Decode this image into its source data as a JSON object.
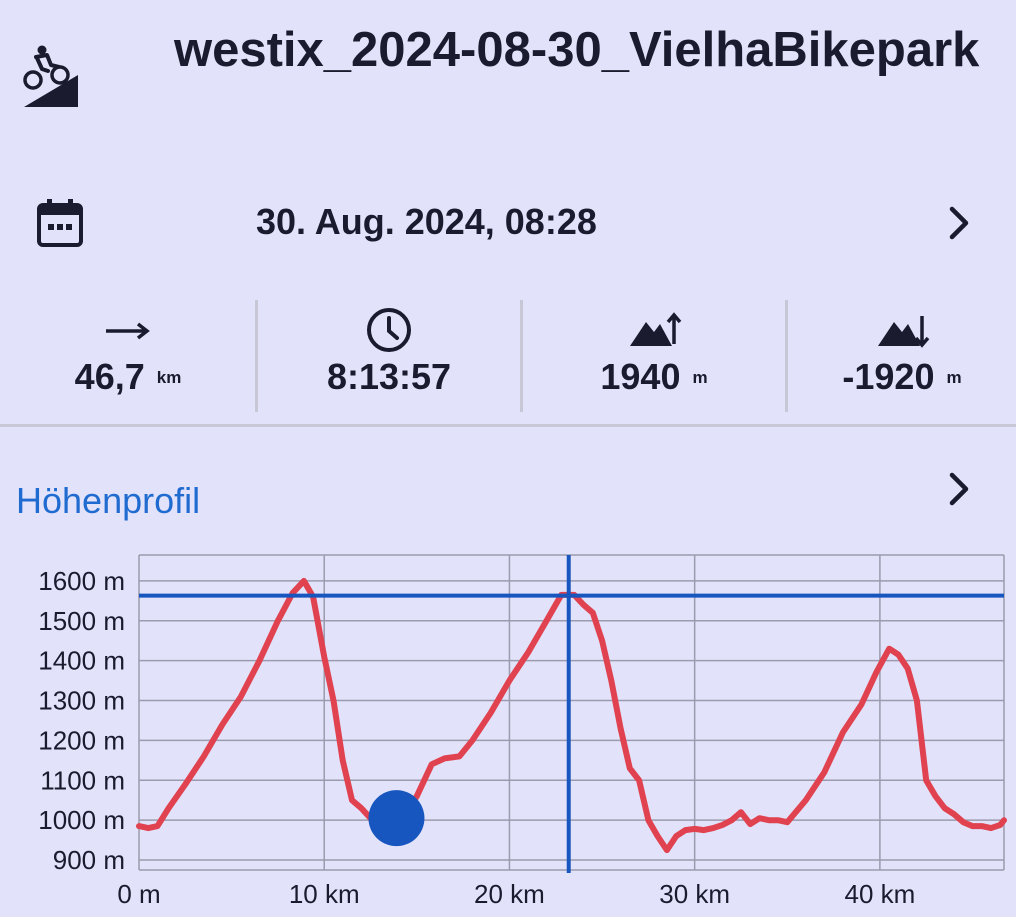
{
  "header": {
    "title": "westix_2024-08-30_VielhaBikepark",
    "activity_icon": "mountain-bike-uphill-icon"
  },
  "date_row": {
    "icon": "calendar-icon",
    "date": "30. Aug. 2024, 08:28",
    "chevron": "chevron-right-icon"
  },
  "stats": [
    {
      "icon": "arrow-right-icon",
      "value": "46,7",
      "unit": "km"
    },
    {
      "icon": "clock-icon",
      "value": "8:13:57",
      "unit": ""
    },
    {
      "icon": "elevation-gain-icon",
      "value": "1940",
      "unit": "m"
    },
    {
      "icon": "elevation-loss-icon",
      "value": "-1920",
      "unit": "m"
    }
  ],
  "profile": {
    "title": "Höhenprofil",
    "chevron": "chevron-right-icon"
  },
  "colors": {
    "background": "#e2e2fb",
    "accent": "#1f6bd0",
    "profile_line": "#e0434f",
    "crosshair": "#1756bf",
    "grid": "#9b9bad"
  },
  "chart_data": {
    "type": "line",
    "title": "",
    "xlabel": "",
    "ylabel": "",
    "x_ticks": [
      "0 m",
      "10 km",
      "20 km",
      "30 km",
      "40 km"
    ],
    "x_tick_values": [
      0,
      10,
      20,
      30,
      40
    ],
    "y_ticks": [
      "900 m",
      "1000 m",
      "1100 m",
      "1200 m",
      "1300 m",
      "1400 m",
      "1500 m",
      "1600 m"
    ],
    "y_tick_values": [
      900,
      1000,
      1100,
      1200,
      1300,
      1400,
      1500,
      1600
    ],
    "xlim": [
      0,
      46.7
    ],
    "ylim": [
      875,
      1665
    ],
    "grid": true,
    "series": [
      {
        "name": "",
        "x": [
          0,
          0.5,
          1,
          1.6,
          2.5,
          3.5,
          4.5,
          5.5,
          6.5,
          7.5,
          8.3,
          8.9,
          9.4,
          10,
          10.5,
          11,
          11.5,
          12,
          12.5,
          13,
          13.5,
          14,
          14.5,
          15,
          15.8,
          16.5,
          17.3,
          18,
          19,
          20,
          21,
          22,
          22.8,
          23.5,
          24,
          24.5,
          25,
          25.5,
          26,
          26.5,
          27,
          27.5,
          28,
          28.5,
          29,
          29.5,
          30,
          30.5,
          31,
          31.5,
          32,
          32.5,
          33,
          33.5,
          34,
          34.5,
          35,
          36,
          37,
          38,
          39,
          39.8,
          40.5,
          41,
          41.5,
          42,
          42.5,
          43,
          43.5,
          44,
          44.5,
          45,
          45.5,
          46,
          46.5,
          46.7
        ],
        "y": [
          985,
          980,
          985,
          1030,
          1090,
          1160,
          1240,
          1310,
          1400,
          1500,
          1570,
          1600,
          1560,
          1410,
          1300,
          1150,
          1050,
          1030,
          1005,
          998,
          1002,
          1005,
          1025,
          1060,
          1140,
          1155,
          1160,
          1200,
          1270,
          1350,
          1420,
          1500,
          1565,
          1565,
          1540,
          1520,
          1450,
          1350,
          1230,
          1130,
          1100,
          1000,
          960,
          925,
          960,
          975,
          978,
          975,
          980,
          988,
          1000,
          1020,
          990,
          1005,
          1000,
          1000,
          995,
          1050,
          1120,
          1220,
          1290,
          1370,
          1430,
          1415,
          1380,
          1300,
          1100,
          1060,
          1030,
          1015,
          995,
          985,
          985,
          980,
          988,
          1000
        ]
      }
    ],
    "crosshair": {
      "x": 23.2,
      "y": 1563
    },
    "marker": {
      "x": 13.9,
      "y": 1005
    }
  }
}
